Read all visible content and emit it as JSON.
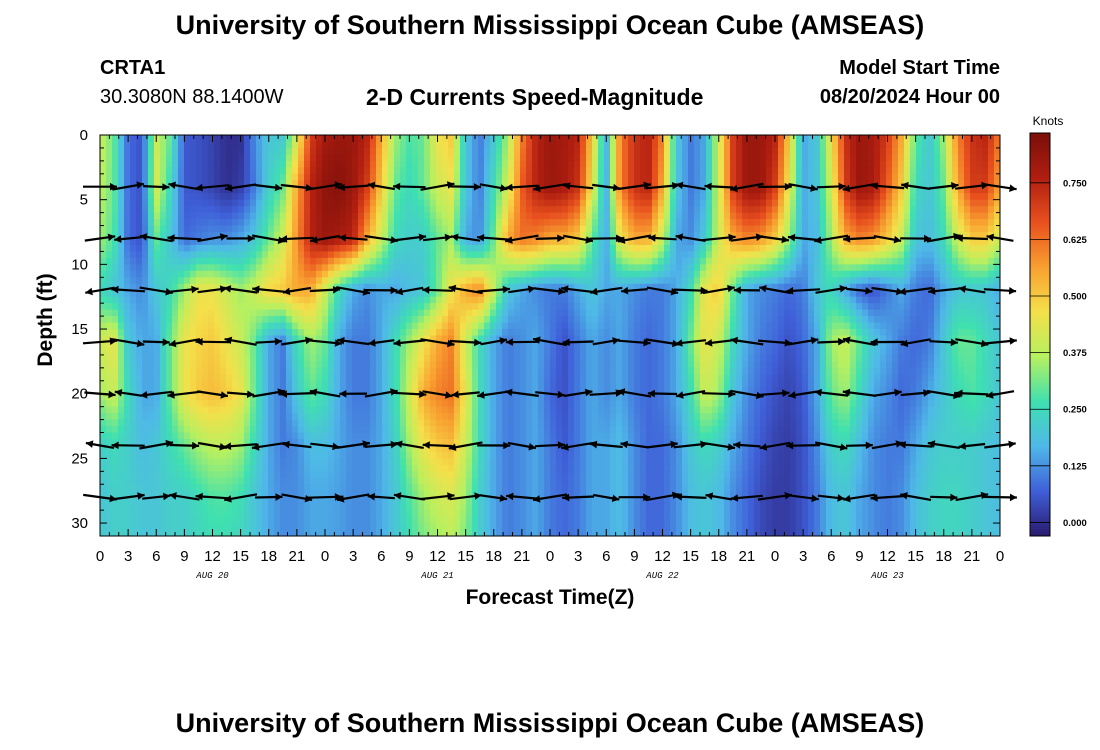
{
  "header": {
    "title": "University of Southern Mississippi Ocean Cube (AMSEAS)",
    "station_id": "CRTA1",
    "station_coords": "30.3080N  88.1400W",
    "subtitle": "2-D Currents Speed-Magnitude",
    "model_start_label": "Model Start Time",
    "model_start_value": "08/20/2024 Hour 00"
  },
  "footer": {
    "title": "University of Southern Mississippi Ocean Cube (AMSEAS)"
  },
  "colors": {
    "colormap": [
      "#2a1a6e",
      "#3f5fd8",
      "#4fb8e8",
      "#3fe0b0",
      "#b6f060",
      "#f4e04a",
      "#f8a030",
      "#e8501e",
      "#b01e10",
      "#7a0f0a"
    ]
  },
  "chart_data": {
    "type": "heatmap",
    "title": "2-D Currents Speed-Magnitude",
    "xlabel": "Forecast Time(Z)",
    "ylabel": "Depth (ft)",
    "colorbar_label": "Knots",
    "colorbar_ticks": [
      "0.000",
      "0.125",
      "0.250",
      "0.375",
      "0.500",
      "0.625",
      "0.750"
    ],
    "colorbar_range": [
      -0.03,
      0.86
    ],
    "x_range_hours": [
      0,
      96
    ],
    "y_range_ft": [
      0,
      31
    ],
    "x_tick_labels": [
      "0",
      "3",
      "6",
      "9",
      "12",
      "15",
      "18",
      "21",
      "0",
      "3",
      "6",
      "9",
      "12",
      "15",
      "18",
      "21",
      "0",
      "3",
      "6",
      "9",
      "12",
      "15",
      "18",
      "21",
      "0",
      "3",
      "6",
      "9",
      "12",
      "15",
      "18",
      "21",
      "0"
    ],
    "y_ticks": [
      0,
      5,
      10,
      15,
      20,
      25,
      30
    ],
    "date_labels": [
      {
        "text": "AUG 20",
        "hour": 12
      },
      {
        "text": "AUG 21",
        "hour": 36
      },
      {
        "text": "AUG 22",
        "hour": 60
      },
      {
        "text": "AUG 23",
        "hour": 84
      }
    ],
    "arrow_depths_ft": [
      4,
      8,
      12,
      16,
      20,
      24,
      28
    ],
    "arrow_times_h": [
      0,
      3,
      6,
      9,
      12,
      15,
      18,
      21,
      24,
      27,
      30,
      33,
      36,
      39,
      42,
      45,
      48,
      51,
      54,
      57,
      60,
      63,
      66,
      69,
      72,
      75,
      78,
      81,
      84,
      87,
      90,
      93,
      96
    ],
    "time_nodes_h": [
      0,
      1.5,
      3,
      4.5,
      6,
      7.5,
      9,
      10.5,
      12,
      13.5,
      15,
      16.5,
      18,
      19.5,
      21,
      22.5,
      24,
      25.5,
      27,
      28.5,
      30,
      31.5,
      33,
      34.5,
      36,
      37.5,
      39,
      40.5,
      42,
      43.5,
      45,
      46.5,
      48,
      49.5,
      51,
      52.5,
      54,
      55.5,
      57,
      58.5,
      60,
      61.5,
      63,
      64.5,
      66,
      67.5,
      69,
      70.5,
      72,
      73.5,
      75,
      76.5,
      78,
      79.5,
      81,
      82.5,
      84,
      85.5,
      87,
      88.5,
      90,
      91.5,
      93,
      94.5,
      96
    ],
    "depth_nodes_ft": [
      0,
      4,
      8,
      12,
      16,
      20,
      24,
      28,
      31
    ],
    "speed_knots_by_depth": [
      [
        0.4,
        0.3,
        0.08,
        0.05,
        0.4,
        0.3,
        0.06,
        0.05,
        0.03,
        0.0,
        0.0,
        0.12,
        0.2,
        0.2,
        0.4,
        0.7,
        0.78,
        0.8,
        0.8,
        0.75,
        0.55,
        0.35,
        0.28,
        0.3,
        0.45,
        0.5,
        0.2,
        0.1,
        0.2,
        0.35,
        0.6,
        0.75,
        0.8,
        0.78,
        0.75,
        0.5,
        0.15,
        0.6,
        0.72,
        0.75,
        0.6,
        0.2,
        0.1,
        0.15,
        0.4,
        0.7,
        0.8,
        0.8,
        0.75,
        0.5,
        0.15,
        0.2,
        0.45,
        0.72,
        0.8,
        0.78,
        0.7,
        0.55,
        0.3,
        0.2,
        0.35,
        0.6,
        0.72,
        0.75,
        0.6
      ],
      [
        0.38,
        0.3,
        0.08,
        0.05,
        0.42,
        0.25,
        0.06,
        0.05,
        0.03,
        0.0,
        0.02,
        0.1,
        0.22,
        0.3,
        0.55,
        0.75,
        0.82,
        0.84,
        0.8,
        0.7,
        0.5,
        0.3,
        0.25,
        0.3,
        0.4,
        0.45,
        0.2,
        0.1,
        0.25,
        0.4,
        0.65,
        0.75,
        0.8,
        0.78,
        0.72,
        0.45,
        0.15,
        0.6,
        0.72,
        0.75,
        0.55,
        0.2,
        0.1,
        0.15,
        0.4,
        0.7,
        0.8,
        0.8,
        0.7,
        0.45,
        0.15,
        0.2,
        0.4,
        0.7,
        0.8,
        0.78,
        0.65,
        0.5,
        0.25,
        0.2,
        0.3,
        0.55,
        0.7,
        0.7,
        0.55
      ],
      [
        0.35,
        0.28,
        0.08,
        0.05,
        0.3,
        0.2,
        0.08,
        0.1,
        0.12,
        0.12,
        0.15,
        0.2,
        0.3,
        0.4,
        0.58,
        0.75,
        0.8,
        0.78,
        0.75,
        0.55,
        0.4,
        0.25,
        0.22,
        0.22,
        0.3,
        0.35,
        0.15,
        0.12,
        0.3,
        0.55,
        0.62,
        0.6,
        0.55,
        0.55,
        0.5,
        0.3,
        0.15,
        0.45,
        0.55,
        0.55,
        0.4,
        0.15,
        0.12,
        0.2,
        0.4,
        0.55,
        0.6,
        0.58,
        0.5,
        0.35,
        0.15,
        0.18,
        0.35,
        0.55,
        0.6,
        0.58,
        0.5,
        0.4,
        0.2,
        0.18,
        0.25,
        0.4,
        0.5,
        0.5,
        0.4
      ],
      [
        0.25,
        0.2,
        0.15,
        0.12,
        0.2,
        0.25,
        0.35,
        0.45,
        0.45,
        0.4,
        0.35,
        0.4,
        0.48,
        0.5,
        0.55,
        0.55,
        0.4,
        0.25,
        0.15,
        0.12,
        0.15,
        0.15,
        0.18,
        0.2,
        0.3,
        0.45,
        0.55,
        0.6,
        0.4,
        0.2,
        0.15,
        0.12,
        0.1,
        0.1,
        0.15,
        0.2,
        0.15,
        0.15,
        0.12,
        0.1,
        0.1,
        0.15,
        0.25,
        0.45,
        0.5,
        0.3,
        0.15,
        0.12,
        0.1,
        0.08,
        0.1,
        0.2,
        0.25,
        0.15,
        0.08,
        0.05,
        0.1,
        0.15,
        0.1,
        0.08,
        0.15,
        0.2,
        0.2,
        0.2,
        0.15
      ],
      [
        0.4,
        0.45,
        0.2,
        0.15,
        0.15,
        0.3,
        0.45,
        0.48,
        0.5,
        0.45,
        0.4,
        0.3,
        0.15,
        0.1,
        0.25,
        0.35,
        0.3,
        0.15,
        0.1,
        0.1,
        0.15,
        0.25,
        0.35,
        0.45,
        0.55,
        0.6,
        0.4,
        0.25,
        0.15,
        0.1,
        0.12,
        0.15,
        0.1,
        0.05,
        0.1,
        0.15,
        0.12,
        0.15,
        0.1,
        0.08,
        0.1,
        0.15,
        0.3,
        0.45,
        0.4,
        0.25,
        0.15,
        0.1,
        0.08,
        0.05,
        0.08,
        0.15,
        0.35,
        0.4,
        0.3,
        0.2,
        0.15,
        0.1,
        0.08,
        0.1,
        0.2,
        0.3,
        0.3,
        0.25,
        0.2
      ],
      [
        0.35,
        0.4,
        0.25,
        0.15,
        0.15,
        0.3,
        0.45,
        0.5,
        0.52,
        0.5,
        0.45,
        0.3,
        0.15,
        0.1,
        0.2,
        0.3,
        0.25,
        0.15,
        0.1,
        0.1,
        0.15,
        0.25,
        0.4,
        0.55,
        0.6,
        0.62,
        0.45,
        0.25,
        0.15,
        0.1,
        0.12,
        0.15,
        0.08,
        0.05,
        0.1,
        0.15,
        0.12,
        0.15,
        0.1,
        0.08,
        0.1,
        0.15,
        0.25,
        0.4,
        0.35,
        0.2,
        0.12,
        0.08,
        0.05,
        0.03,
        0.06,
        0.15,
        0.3,
        0.35,
        0.25,
        0.15,
        0.12,
        0.08,
        0.1,
        0.15,
        0.2,
        0.25,
        0.28,
        0.25,
        0.2
      ],
      [
        0.22,
        0.25,
        0.22,
        0.18,
        0.2,
        0.25,
        0.3,
        0.35,
        0.38,
        0.38,
        0.35,
        0.25,
        0.15,
        0.1,
        0.12,
        0.18,
        0.18,
        0.15,
        0.12,
        0.12,
        0.15,
        0.22,
        0.35,
        0.45,
        0.5,
        0.52,
        0.4,
        0.25,
        0.15,
        0.1,
        0.12,
        0.15,
        0.1,
        0.06,
        0.1,
        0.15,
        0.15,
        0.18,
        0.12,
        0.08,
        0.08,
        0.12,
        0.2,
        0.25,
        0.22,
        0.15,
        0.1,
        0.06,
        0.03,
        0.02,
        0.05,
        0.12,
        0.22,
        0.25,
        0.18,
        0.12,
        0.1,
        0.1,
        0.15,
        0.2,
        0.22,
        0.22,
        0.22,
        0.2,
        0.18
      ],
      [
        0.2,
        0.22,
        0.22,
        0.2,
        0.2,
        0.22,
        0.22,
        0.25,
        0.28,
        0.28,
        0.26,
        0.2,
        0.15,
        0.12,
        0.12,
        0.15,
        0.15,
        0.14,
        0.12,
        0.12,
        0.15,
        0.2,
        0.28,
        0.35,
        0.4,
        0.42,
        0.35,
        0.22,
        0.15,
        0.1,
        0.12,
        0.15,
        0.1,
        0.08,
        0.1,
        0.15,
        0.15,
        0.18,
        0.12,
        0.08,
        0.08,
        0.12,
        0.18,
        0.2,
        0.18,
        0.12,
        0.08,
        0.04,
        0.02,
        0.02,
        0.05,
        0.1,
        0.18,
        0.2,
        0.15,
        0.12,
        0.1,
        0.12,
        0.18,
        0.22,
        0.24,
        0.24,
        0.22,
        0.2,
        0.18
      ],
      [
        0.2,
        0.22,
        0.22,
        0.2,
        0.2,
        0.22,
        0.22,
        0.24,
        0.26,
        0.26,
        0.24,
        0.2,
        0.15,
        0.12,
        0.12,
        0.15,
        0.15,
        0.14,
        0.12,
        0.12,
        0.15,
        0.2,
        0.26,
        0.32,
        0.35,
        0.38,
        0.32,
        0.22,
        0.15,
        0.1,
        0.12,
        0.15,
        0.1,
        0.08,
        0.1,
        0.15,
        0.15,
        0.18,
        0.12,
        0.08,
        0.08,
        0.12,
        0.18,
        0.2,
        0.18,
        0.12,
        0.08,
        0.04,
        0.02,
        0.02,
        0.05,
        0.1,
        0.18,
        0.2,
        0.15,
        0.12,
        0.1,
        0.12,
        0.18,
        0.22,
        0.24,
        0.24,
        0.22,
        0.2,
        0.18
      ]
    ]
  }
}
